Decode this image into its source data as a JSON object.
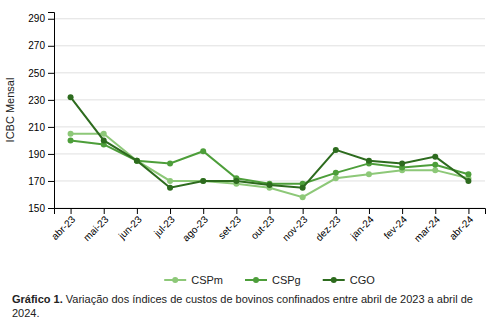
{
  "chart_data": {
    "type": "line",
    "categories": [
      "abr-23",
      "mai-23",
      "jun-23",
      "jul-23",
      "ago-23",
      "set-23",
      "out-23",
      "nov-23",
      "dez-23",
      "jan-24",
      "fev-24",
      "mar-24",
      "abr-24"
    ],
    "series": [
      {
        "name": "CSPm",
        "color": "#8dc878",
        "marker": "circle",
        "values": [
          205,
          205,
          185,
          170,
          170,
          168,
          165,
          158,
          172,
          175,
          178,
          178,
          172
        ]
      },
      {
        "name": "CSPg",
        "color": "#4d9e3a",
        "marker": "circle",
        "values": [
          200,
          197,
          185,
          183,
          192,
          172,
          168,
          168,
          176,
          183,
          180,
          182,
          175
        ]
      },
      {
        "name": "CGO",
        "color": "#2d6b1e",
        "marker": "circle",
        "values": [
          232,
          200,
          185,
          165,
          170,
          170,
          167,
          165,
          193,
          185,
          183,
          188,
          170
        ]
      }
    ],
    "y_label": "ICBC Mensal",
    "ylim": [
      150,
      295
    ],
    "yticks": [
      150,
      170,
      190,
      210,
      230,
      250,
      270,
      290
    ],
    "grid": true,
    "legend": "bottom",
    "caption": [
      "Gráfico 1.",
      "Variação dos índices de custos de bovinos confinados entre abril de 2023 a abril de 2024."
    ]
  }
}
